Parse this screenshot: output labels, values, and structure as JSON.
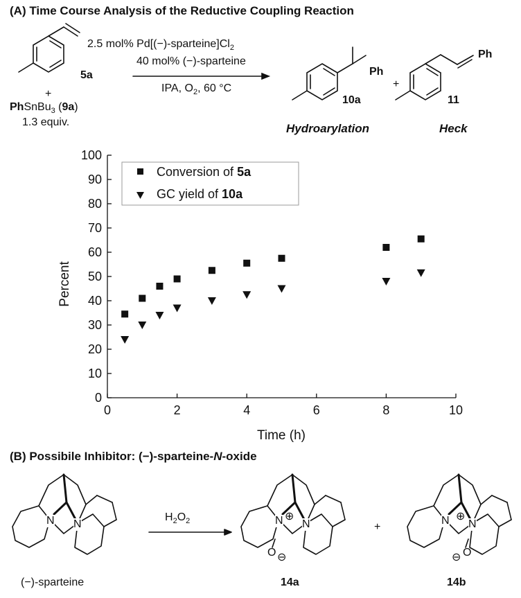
{
  "panel_a": {
    "title": "(A) Time Course Analysis of the Reductive Coupling Reaction",
    "reagent1": "2.5 mol% Pd[(−)-sparteine]Cl",
    "reagent1_sub": "2",
    "reagent2": "40 mol% (−)-sparteine",
    "conditions_a": "IPA, O",
    "conditions_sub": "2",
    "conditions_b": ", 60 °C",
    "substrate_label": "5a",
    "plus": "+",
    "coreagent_a": "Ph",
    "coreagent_b": "SnBu",
    "coreagent_sub": "3",
    "coreagent_c": " (",
    "coreagent_d": "9a",
    "coreagent_e": ")",
    "equiv": "1.3 equiv.",
    "product1_ph": "Ph",
    "product1_label": "10a",
    "product2_ph": "Ph",
    "product2_label": "11",
    "product1_type": "Hydroarylation",
    "product2_type": "Heck"
  },
  "panel_b": {
    "title_a": "(B) Possibile Inhibitor: (−)-sparteine-",
    "title_n": "N",
    "title_b": "-oxide",
    "reagent_a": "H",
    "reagent_sub": "2",
    "reagent_b": "O",
    "reagent_sub2": "2",
    "start_label": "(−)-sparteine",
    "product1_label": "14a",
    "product2_label": "14b",
    "plus": "+",
    "n_symbol": "N",
    "o_symbol": "O",
    "plus_charge": "⊕",
    "minus_charge": "⊖"
  },
  "chart_data": {
    "type": "scatter",
    "xlabel": "Time (h)",
    "ylabel": "Percent",
    "xlim": [
      0,
      10
    ],
    "ylim": [
      0,
      100
    ],
    "xticks": [
      0,
      2,
      4,
      6,
      8,
      10
    ],
    "yticks": [
      0,
      10,
      20,
      30,
      40,
      50,
      60,
      70,
      80,
      90,
      100
    ],
    "grid": false,
    "legend_position": "top-left",
    "series": [
      {
        "name_a": "Conversion of ",
        "name_b": "5a",
        "marker": "square",
        "x": [
          0.5,
          1,
          1.5,
          2,
          3,
          4,
          5,
          8,
          9
        ],
        "y": [
          34.5,
          41,
          46,
          49,
          52.5,
          55.5,
          57.5,
          62,
          65.5
        ]
      },
      {
        "name_a": "GC yield of ",
        "name_b": "10a",
        "marker": "triangle-down",
        "x": [
          0.5,
          1,
          1.5,
          2,
          3,
          4,
          5,
          8,
          9
        ],
        "y": [
          24,
          30,
          34,
          37,
          40,
          42.5,
          45,
          48,
          51.5
        ]
      }
    ]
  }
}
